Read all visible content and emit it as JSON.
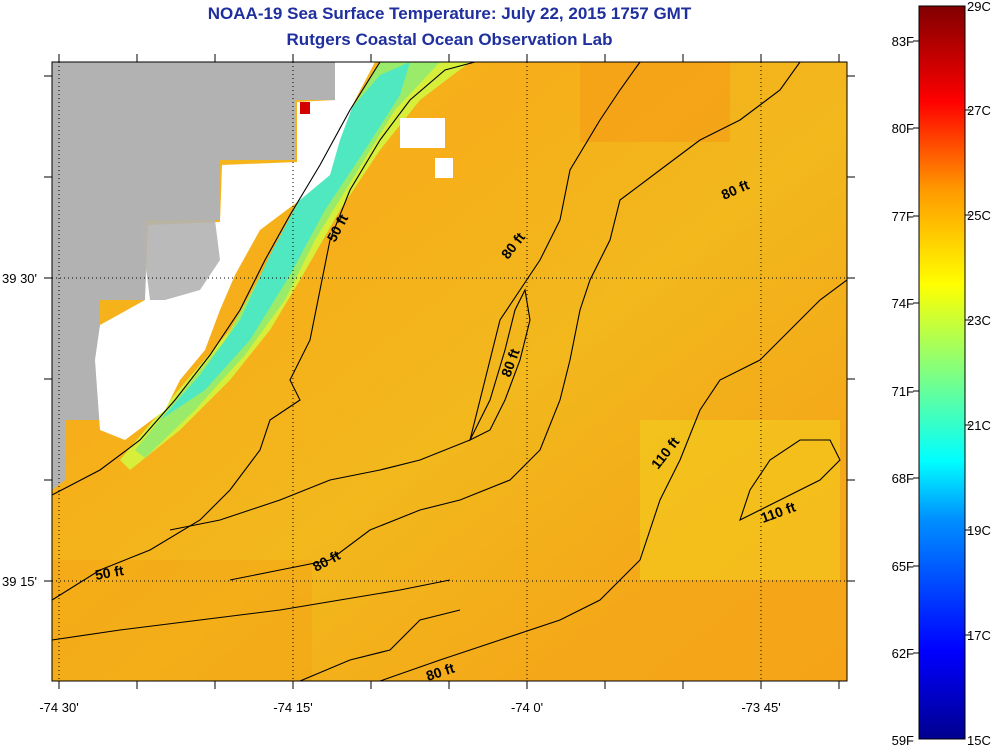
{
  "title": "NOAA-19 Sea Surface Temperature:  July 22, 2015 1757 GMT",
  "subtitle": "Rutgers Coastal Ocean Observation Lab",
  "axes": {
    "x_ticks": [
      "-74 30'",
      "-74 15'",
      "-74 0'",
      "-73 45'"
    ],
    "y_ticks": [
      "39 30'",
      "39 15'"
    ]
  },
  "contour_labels": [
    "50 ft",
    "80 ft",
    "80 ft",
    "80 ft",
    "110 ft",
    "110 ft",
    "50 ft",
    "80 ft",
    "80 ft"
  ],
  "colorbar": {
    "fahrenheit": [
      "83F",
      "80F",
      "77F",
      "74F",
      "71F",
      "68F",
      "65F",
      "62F",
      "59F"
    ],
    "celsius": [
      "29C",
      "27C",
      "25C",
      "23C",
      "21C",
      "19C",
      "17C",
      "15C"
    ],
    "range_c": [
      15,
      29
    ]
  },
  "colors": {
    "land": "#b2b2b2",
    "no_data": "#ffffff",
    "title": "#1f2f9e",
    "sst_dominant": "#f6b21a"
  }
}
